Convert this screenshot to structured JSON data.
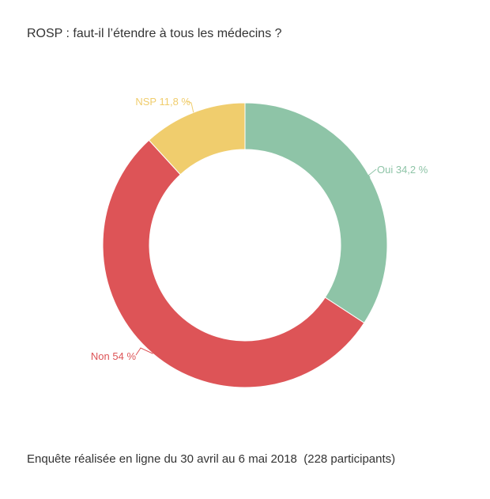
{
  "title": "ROSP : faut-il l’étendre à tous les médecins ?",
  "footer": "Enquête réalisée en ligne du 30 avril au 6 mai 2018  (228 participants)",
  "chart_data": {
    "type": "pie",
    "donut": true,
    "title": "ROSP : faut-il l’étendre à tous les médecins ?",
    "categories": [
      "Oui",
      "Non",
      "NSP"
    ],
    "values": [
      34.2,
      54,
      11.8
    ],
    "labels": [
      "Oui 34,2 %",
      "Non 54 %",
      "NSP 11,8 %"
    ],
    "colors": [
      "#8ec4a7",
      "#dd5457",
      "#f0cd6d"
    ],
    "legend": "none",
    "start": "top, clockwise"
  }
}
